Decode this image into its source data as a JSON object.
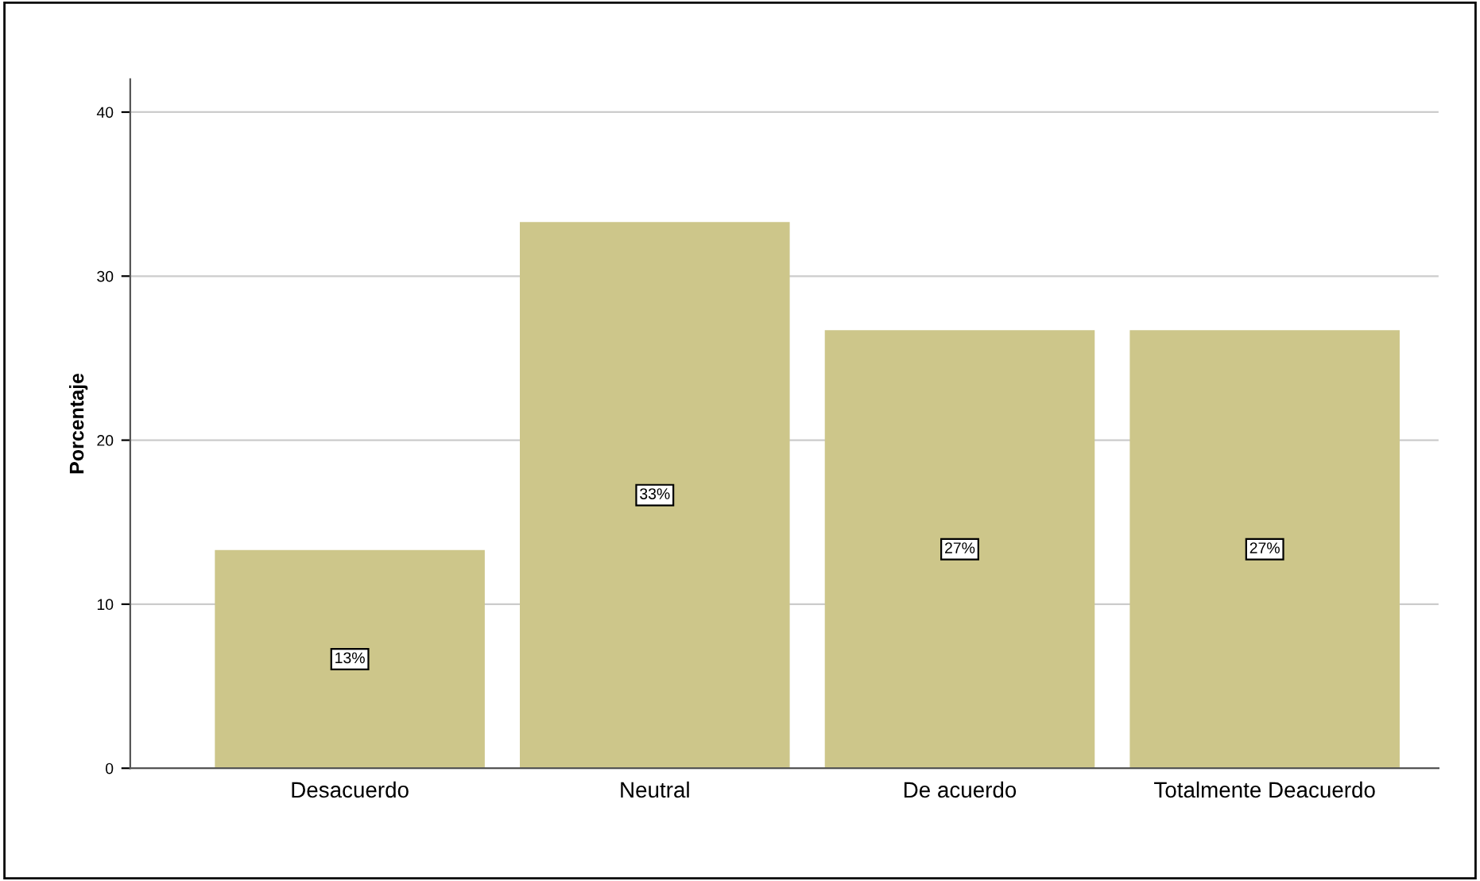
{
  "chart_data": {
    "type": "bar",
    "ylabel": "Porcentaje",
    "categories": [
      "Desacuerdo",
      "Neutral",
      "De acuerdo",
      "Totalmente Deacuerdo"
    ],
    "values": [
      13.3,
      33.3,
      26.7,
      26.7
    ],
    "value_labels": [
      "13%",
      "33%",
      "27%",
      "27%"
    ],
    "color": "#cdc68a",
    "ylim": [
      0,
      42
    ],
    "yticks": [
      0,
      10,
      20,
      30,
      40
    ],
    "grid": "y"
  }
}
